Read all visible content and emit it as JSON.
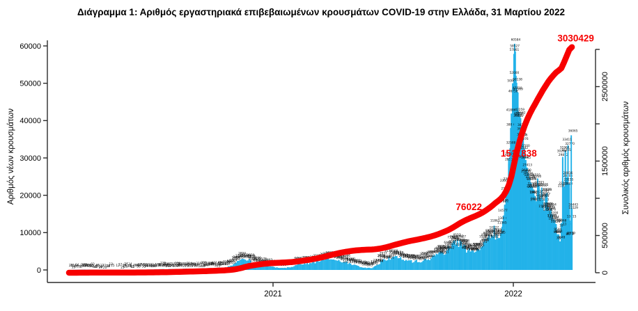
{
  "title": "Διάγραμμα 1: Αριθμός εργαστηριακά επιβεβαιωμένων κρουσμάτων COVID-19 στην Ελλάδα, 31 Μαρτίου 2022",
  "colors": {
    "bar": "#22b2e9",
    "cumulative_line": "#f70000",
    "annotation_red": "#f70000",
    "axis": "#2b2b2b",
    "tiny_label": "#0a0a0a"
  },
  "chart_data": {
    "type": "bar",
    "title": "Διάγραμμα 1: Αριθμός εργαστηριακά επιβεβαιωμένων κρουσμάτων COVID-19 στην Ελλάδα, 31 Μαρτίου 2022",
    "left_axis": {
      "label": "Αριθμός νέων κρουσμάτων",
      "ticks": [
        0,
        10000,
        20000,
        30000,
        40000,
        50000,
        60000
      ],
      "range": [
        0,
        60000
      ]
    },
    "right_axis": {
      "label": "Συνολικός αριθμός κρουσμάτων",
      "ticks": [
        0,
        500000,
        1000000,
        1500000,
        2000000,
        2500000,
        3000000
      ],
      "labeled_ticks": [
        0,
        500000,
        1500000,
        2500000
      ],
      "range": [
        0,
        3000000
      ]
    },
    "x_axis": {
      "tick_labels": [
        "2021",
        "2022"
      ],
      "tick_days": [
        310,
        675
      ],
      "days_total": 764
    },
    "series": [
      {
        "name": "daily_new_cases",
        "type": "bar",
        "points": [
          [
            0,
            5
          ],
          [
            8,
            35
          ],
          [
            16,
            75
          ],
          [
            24,
            105
          ],
          [
            32,
            90
          ],
          [
            40,
            55
          ],
          [
            48,
            30
          ],
          [
            56,
            18
          ],
          [
            64,
            13
          ],
          [
            72,
            12
          ],
          [
            80,
            16
          ],
          [
            88,
            25
          ],
          [
            96,
            40
          ],
          [
            104,
            55
          ],
          [
            112,
            75
          ],
          [
            120,
            95
          ],
          [
            128,
            130
          ],
          [
            136,
            170
          ],
          [
            144,
            215
          ],
          [
            152,
            240
          ],
          [
            160,
            265
          ],
          [
            168,
            300
          ],
          [
            176,
            330
          ],
          [
            184,
            315
          ],
          [
            192,
            290
          ],
          [
            200,
            340
          ],
          [
            208,
            385
          ],
          [
            216,
            430
          ],
          [
            224,
            480
          ],
          [
            232,
            560
          ],
          [
            240,
            780
          ],
          [
            246,
            1100
          ],
          [
            252,
            1700
          ],
          [
            258,
            2400
          ],
          [
            263,
            2900
          ],
          [
            267,
            3316
          ],
          [
            271,
            2800
          ],
          [
            276,
            2300
          ],
          [
            281,
            1900
          ],
          [
            287,
            1650
          ],
          [
            293,
            1380
          ],
          [
            299,
            1150
          ],
          [
            305,
            980
          ],
          [
            310,
            840
          ],
          [
            315,
            680
          ],
          [
            320,
            560
          ],
          [
            325,
            510
          ],
          [
            330,
            590
          ],
          [
            335,
            740
          ],
          [
            340,
            920
          ],
          [
            345,
            1250
          ],
          [
            350,
            1520
          ],
          [
            355,
            1700
          ],
          [
            360,
            1860
          ],
          [
            365,
            1700
          ],
          [
            370,
            1950
          ],
          [
            375,
            2200
          ],
          [
            380,
            2450
          ],
          [
            385,
            2700
          ],
          [
            390,
            2900
          ],
          [
            395,
            3080
          ],
          [
            400,
            3000
          ],
          [
            405,
            2780
          ],
          [
            410,
            2550
          ],
          [
            415,
            2320
          ],
          [
            420,
            2080
          ],
          [
            425,
            1800
          ],
          [
            430,
            1550
          ],
          [
            435,
            1250
          ],
          [
            440,
            950
          ],
          [
            445,
            750
          ],
          [
            450,
            620
          ],
          [
            455,
            540
          ],
          [
            460,
            560
          ],
          [
            465,
            900
          ],
          [
            470,
            1600
          ],
          [
            475,
            2300
          ],
          [
            480,
            2750
          ],
          [
            485,
            3050
          ],
          [
            490,
            3250
          ],
          [
            495,
            3380
          ],
          [
            500,
            3250
          ],
          [
            505,
            3080
          ],
          [
            510,
            2850
          ],
          [
            515,
            2600
          ],
          [
            520,
            2380
          ],
          [
            525,
            2250
          ],
          [
            530,
            2320
          ],
          [
            535,
            2420
          ],
          [
            540,
            2550
          ],
          [
            545,
            2750
          ],
          [
            550,
            3080
          ],
          [
            555,
            3600
          ],
          [
            560,
            4200
          ],
          [
            563,
            4516
          ],
          [
            566,
            4912
          ],
          [
            570,
            4091
          ],
          [
            574,
            5200
          ],
          [
            578,
            5900
          ],
          [
            582,
            6500
          ],
          [
            586,
            7000
          ],
          [
            590,
            7335
          ],
          [
            594,
            6900
          ],
          [
            598,
            6300
          ],
          [
            602,
            5800
          ],
          [
            606,
            5300
          ],
          [
            610,
            4950
          ],
          [
            614,
            4700
          ],
          [
            618,
            4900
          ],
          [
            622,
            5400
          ],
          [
            626,
            6100
          ],
          [
            630,
            6900
          ],
          [
            634,
            7700
          ],
          [
            638,
            8295
          ],
          [
            642,
            9215
          ],
          [
            646,
            10227
          ],
          [
            650,
            9400
          ],
          [
            653,
            8600
          ],
          [
            656,
            9800
          ],
          [
            659,
            13000
          ],
          [
            662,
            17500
          ],
          [
            665,
            23000
          ],
          [
            668,
            28500
          ],
          [
            671,
            38000
          ],
          [
            674,
            50000
          ],
          [
            677,
            60584
          ],
          [
            679,
            52000
          ],
          [
            681,
            47710
          ],
          [
            684,
            42259
          ],
          [
            685,
            41137
          ],
          [
            686,
            40635
          ],
          [
            688,
            38200
          ],
          [
            689,
            36850
          ],
          [
            690,
            35366
          ],
          [
            692,
            32500
          ],
          [
            694,
            29451
          ],
          [
            696,
            27413
          ],
          [
            698,
            26000
          ],
          [
            700,
            24681
          ],
          [
            702,
            23379
          ],
          [
            704,
            22300
          ],
          [
            706,
            21302
          ],
          [
            708,
            19800
          ],
          [
            710,
            18400
          ],
          [
            712,
            24515
          ],
          [
            714,
            21800
          ],
          [
            716,
            19300
          ],
          [
            718,
            22075
          ],
          [
            720,
            17600
          ],
          [
            722,
            15900
          ],
          [
            724,
            20295
          ],
          [
            726,
            20629
          ],
          [
            728,
            16800
          ],
          [
            730,
            14900
          ],
          [
            732,
            15529
          ],
          [
            734,
            14200
          ],
          [
            736,
            13580
          ],
          [
            738,
            12600
          ],
          [
            740,
            11824
          ],
          [
            742,
            9003
          ],
          [
            744,
            8955
          ],
          [
            746,
            7461
          ],
          [
            748,
            12590
          ],
          [
            750,
            29812
          ],
          [
            751,
            10962
          ],
          [
            752,
            21500
          ],
          [
            754,
            31964
          ],
          [
            755,
            11300
          ],
          [
            756,
            24206
          ],
          [
            758,
            32770
          ],
          [
            759,
            8918
          ],
          [
            760,
            22000
          ],
          [
            761,
            13215
          ],
          [
            762,
            8413
          ],
          [
            763,
            36065
          ],
          [
            764,
            15529
          ]
        ]
      },
      {
        "name": "cumulative_cases",
        "type": "line",
        "final_value": 3030429
      }
    ],
    "annotations": [
      {
        "text": "76022",
        "fx": 0.769,
        "fy": 0.683
      },
      {
        "text": "1511838",
        "fx": 0.86,
        "fy": 0.469
      },
      {
        "text": "3030429",
        "fx": 0.964,
        "fy": 0.01
      }
    ]
  }
}
